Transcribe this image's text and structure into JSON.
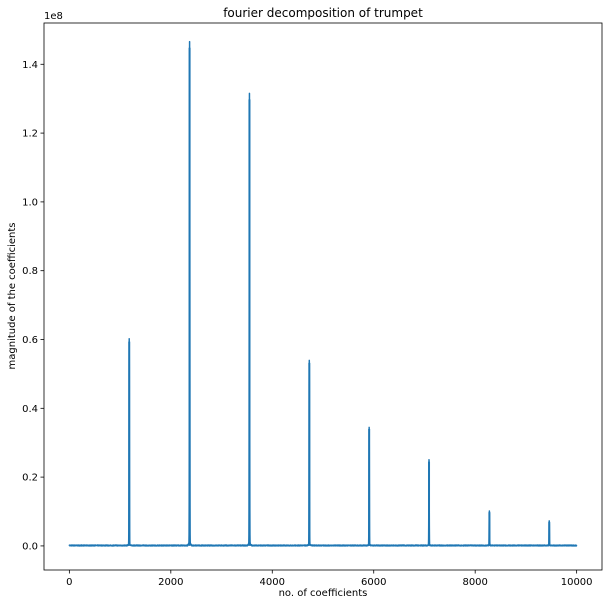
{
  "chart_data": {
    "type": "line",
    "title": "fourier decomposition of trumpet",
    "xlabel": "no. of coefficients",
    "ylabel": "magnitude of the coefficients",
    "y_offset_label": "1e8",
    "y_scale": 100000000,
    "xlim": [
      -500,
      10500
    ],
    "ylim": [
      -0.07,
      1.52
    ],
    "grid": false,
    "x_ticks": [
      0,
      2000,
      4000,
      6000,
      8000,
      10000
    ],
    "x_tick_labels": [
      "0",
      "2000",
      "4000",
      "6000",
      "8000",
      "10000"
    ],
    "y_ticks": [
      0.0,
      0.2,
      0.4,
      0.6,
      0.8,
      1.0,
      1.2,
      1.4
    ],
    "y_tick_labels": [
      "0.0",
      "0.2",
      "0.4",
      "0.6",
      "0.8",
      "1.0",
      "1.2",
      "1.4"
    ],
    "series": [
      {
        "color": "#1f77b4",
        "baseline": 0.0,
        "x_end": 10000,
        "peaks": [
          {
            "x": 1180,
            "y": 0.594
          },
          {
            "x": 2370,
            "y": 1.448
          },
          {
            "x": 3550,
            "y": 1.298
          },
          {
            "x": 4730,
            "y": 0.532
          },
          {
            "x": 5910,
            "y": 0.34
          },
          {
            "x": 7090,
            "y": 0.245
          },
          {
            "x": 8280,
            "y": 0.098
          },
          {
            "x": 9460,
            "y": 0.07
          }
        ]
      }
    ]
  }
}
